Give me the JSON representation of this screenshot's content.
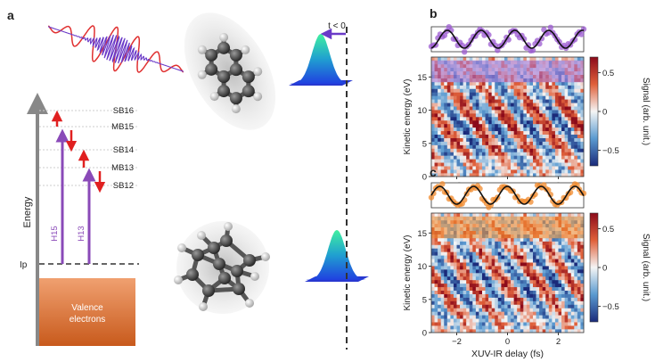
{
  "panel_labels": {
    "a": "a",
    "b": "b",
    "c": "c"
  },
  "energy_diagram": {
    "axis_label": "Energy",
    "ip_label": "Ip",
    "levels": [
      "SB16",
      "MB15",
      "SB14",
      "MB13",
      "SB12"
    ],
    "harmonics": [
      "H15",
      "H13"
    ],
    "valence_label_1": "Valence",
    "valence_label_2": "electrons"
  },
  "time_label": "t < 0",
  "colors": {
    "orange_box": "#e07a3c",
    "harmonic_arrow": "#8a4ab8",
    "ir_arrow": "#e02020",
    "ir_pulse": "#e03030",
    "xuv_pulse": "#6a3ac8"
  },
  "chart_data": [
    {
      "panel": "b",
      "type": "heatmap",
      "ylabel": "Kinetic energy (eV)",
      "xlabel": "",
      "colorbar_label": "Signal (arb. unit.)",
      "x_ticks": [
        "−2",
        "0",
        "2"
      ],
      "y_ticks": [
        "0",
        "5",
        "10",
        "15"
      ],
      "colorbar_ticks": [
        "0.5",
        "0",
        "−0.5"
      ],
      "xlim": [
        -3,
        3
      ],
      "ylim": [
        0,
        18
      ],
      "clim": [
        -0.7,
        0.7
      ],
      "oscillation_period_fs": 1.33,
      "fit_color": "#111111",
      "point_color": "#9b59d0"
    },
    {
      "panel": "c",
      "type": "heatmap",
      "ylabel": "Kinetic energy (eV)",
      "xlabel": "XUV-IR delay (fs)",
      "colorbar_label": "Signal (arb. unit.)",
      "x_ticks": [
        "−2",
        "0",
        "2"
      ],
      "y_ticks": [
        "0",
        "5",
        "10",
        "15"
      ],
      "colorbar_ticks": [
        "0.5",
        "0",
        "−0.5"
      ],
      "xlim": [
        -3,
        3
      ],
      "ylim": [
        0,
        18
      ],
      "clim": [
        -0.7,
        0.7
      ],
      "oscillation_period_fs": 1.33,
      "fit_color": "#111111",
      "point_color": "#f08a2c"
    }
  ]
}
